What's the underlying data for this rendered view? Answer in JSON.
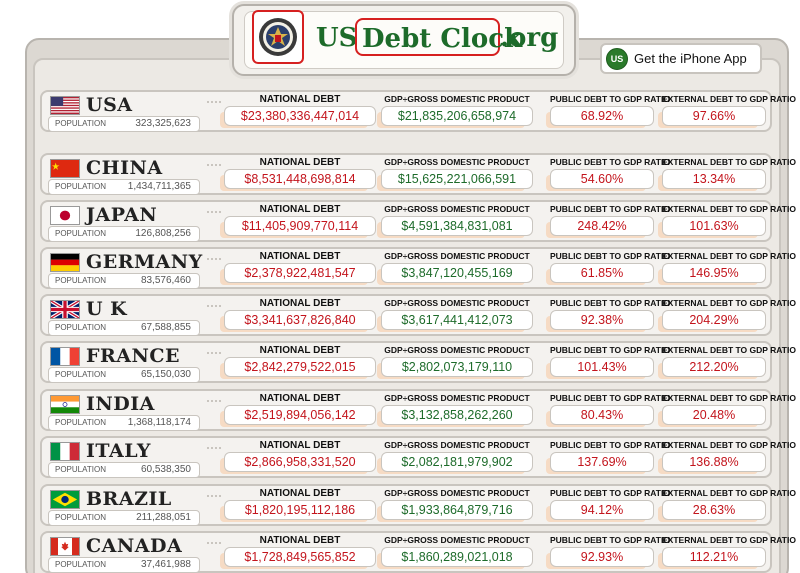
{
  "header": {
    "logo_us": "US",
    "logo_debt_clock": "Debt Clock",
    "logo_org": ".org",
    "app_icon_text": "US",
    "app_button_label": "Get the iPhone App"
  },
  "labels": {
    "national_debt": "NATIONAL DEBT",
    "gdp": "GDP÷GROSS DOMESTIC PRODUCT",
    "public_debt_ratio": "PUBLIC DEBT TO GDP RATIO",
    "external_debt_ratio": "EXTERNAL DEBT TO GDP RATIO",
    "population": "POPULATION"
  },
  "colors": {
    "debt": "#c3141c",
    "gdp": "#1d6b2a",
    "accent_highlight": "#d62020"
  },
  "countries": [
    {
      "name": "USA",
      "flag": "us-flag",
      "population": "323,325,623",
      "national_debt": "$23,380,336,447,014",
      "gdp": "$21,835,206,658,974",
      "public_debt_ratio": "68.92%",
      "external_debt_ratio": "97.66%"
    },
    {
      "name": "CHINA",
      "flag": "china-flag",
      "population": "1,434,711,365",
      "national_debt": "$8,531,448,698,814",
      "gdp": "$15,625,221,066,591",
      "public_debt_ratio": "54.60%",
      "external_debt_ratio": "13.34%"
    },
    {
      "name": "JAPAN",
      "flag": "japan-flag",
      "population": "126,808,256",
      "national_debt": "$11,405,909,770,114",
      "gdp": "$4,591,384,831,081",
      "public_debt_ratio": "248.42%",
      "external_debt_ratio": "101.63%"
    },
    {
      "name": "GERMANY",
      "flag": "germany-flag",
      "population": "83,576,460",
      "national_debt": "$2,378,922,481,547",
      "gdp": "$3,847,120,455,169",
      "public_debt_ratio": "61.85%",
      "external_debt_ratio": "146.95%"
    },
    {
      "name": "U K",
      "flag": "uk-flag",
      "population": "67,588,855",
      "national_debt": "$3,341,637,826,840",
      "gdp": "$3,617,441,412,073",
      "public_debt_ratio": "92.38%",
      "external_debt_ratio": "204.29%"
    },
    {
      "name": "FRANCE",
      "flag": "france-flag",
      "population": "65,150,030",
      "national_debt": "$2,842,279,522,015",
      "gdp": "$2,802,073,179,110",
      "public_debt_ratio": "101.43%",
      "external_debt_ratio": "212.20%"
    },
    {
      "name": "INDIA",
      "flag": "india-flag",
      "population": "1,368,118,174",
      "national_debt": "$2,519,894,056,142",
      "gdp": "$3,132,858,262,260",
      "public_debt_ratio": "80.43%",
      "external_debt_ratio": "20.48%"
    },
    {
      "name": "ITALY",
      "flag": "italy-flag",
      "population": "60,538,350",
      "national_debt": "$2,866,958,331,520",
      "gdp": "$2,082,181,979,902",
      "public_debt_ratio": "137.69%",
      "external_debt_ratio": "136.88%"
    },
    {
      "name": "BRAZIL",
      "flag": "brazil-flag",
      "population": "211,288,051",
      "national_debt": "$1,820,195,112,186",
      "gdp": "$1,933,864,879,716",
      "public_debt_ratio": "94.12%",
      "external_debt_ratio": "28.63%"
    },
    {
      "name": "CANADA",
      "flag": "canada-flag",
      "population": "37,461,988",
      "national_debt": "$1,728,849,565,852",
      "gdp": "$1,860,289,021,018",
      "public_debt_ratio": "92.93%",
      "external_debt_ratio": "112.21%"
    }
  ]
}
